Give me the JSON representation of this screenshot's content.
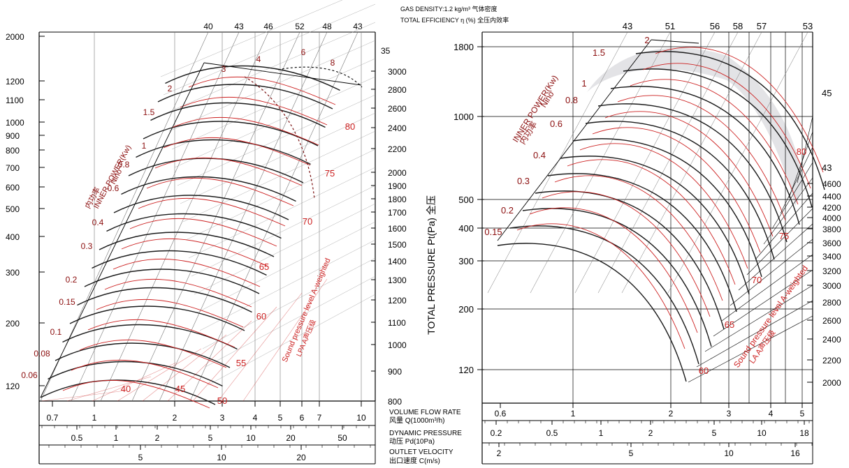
{
  "header": {
    "gas_density": "GAS DENSITY:1.2 kg/m³ 气体密度",
    "total_efficiency": "TOTAL EFFICIENCY η (%) 全压内效率"
  },
  "colors": {
    "curve_dark": "#1a1a1a",
    "curve_red": "#cc1f1f",
    "label_dark_red": "#8b0d0d",
    "grid": "#777777",
    "shade": "#e3e3e6"
  },
  "footer_labels": {
    "flow_en": "VOLUME FLOW RATE",
    "flow_cn": "风量 Q(1000m³/h)",
    "dyn_en": "DYNAMIC PRESSURE",
    "dyn_cn": "动压 Pd(10Pa)",
    "vel_en": "OUTLET VELOCITY",
    "vel_cn": "出口速度 C(m/s)"
  },
  "chart_data": [
    {
      "type": "line",
      "panel": "left",
      "y_axis_ticks": [
        "2000",
        "1200",
        "1100",
        "1000",
        "900",
        "800",
        "700",
        "600",
        "500",
        "400",
        "300",
        "200",
        "120"
      ],
      "rpm_ticks": [
        "3000",
        "2800",
        "2600",
        "2400",
        "2200",
        "2000",
        "1900",
        "1800",
        "1700",
        "1600",
        "1500",
        "1400",
        "1300",
        "1200",
        "1100",
        "1000",
        "900",
        "800"
      ],
      "rpm_top_label": "35",
      "efficiency_ticks": [
        "40",
        "43",
        "46",
        "52",
        "48",
        "43"
      ],
      "power_labels": [
        "0.06",
        "0.08",
        "0.1",
        "0.15",
        "0.2",
        "0.3",
        "0.4",
        "0.6",
        "0.8",
        "1",
        "1.5",
        "2",
        "3",
        "4",
        "6",
        "8"
      ],
      "sound_labels": [
        "40",
        "45",
        "50",
        "55",
        "60",
        "65",
        "70",
        "75",
        "80"
      ],
      "flow_ticks": [
        "0.7",
        "1",
        "2",
        "3",
        "4",
        "5",
        "6",
        "7",
        "10"
      ],
      "dyn_ticks": [
        "0.5",
        "1",
        "2",
        "5",
        "10",
        "20",
        "50"
      ],
      "vel_ticks": [
        "5",
        "10",
        "20"
      ],
      "power_title": "INNER POWER(Kw)",
      "power_title_cn": "内功率",
      "nino_label": "Nino",
      "sound_title": "Sound pressure level A-weighted",
      "sound_title_cn": "LPA A声压级"
    },
    {
      "type": "line",
      "panel": "right",
      "y_axis_ticks": [
        "1800",
        "1000",
        "500",
        "400",
        "300",
        "200",
        "120"
      ],
      "y_axis_title": "TOTAL PRESSURE Pt(Pa) 全压",
      "rpm_ticks": [
        "4600",
        "4400",
        "4200",
        "4000",
        "3800",
        "3600",
        "3400",
        "3200",
        "3000",
        "2800",
        "2600",
        "2400",
        "2200",
        "2000"
      ],
      "efficiency_ticks": [
        "43",
        "51",
        "56",
        "58",
        "57",
        "53"
      ],
      "efficiency_side": [
        "45",
        "43"
      ],
      "power_labels": [
        "0.15",
        "0.2",
        "0.3",
        "0.4",
        "0.6",
        "0.8",
        "1",
        "1.5",
        "2"
      ],
      "sound_labels": [
        "60",
        "65",
        "70",
        "75",
        "80"
      ],
      "flow_ticks": [
        "0.6",
        "1",
        "2",
        "3",
        "4",
        "5"
      ],
      "dyn_ticks": [
        "0.2",
        "0.5",
        "1",
        "2",
        "5",
        "10",
        "18"
      ],
      "vel_ticks": [
        "2",
        "5",
        "10",
        "16"
      ],
      "power_title": "INNER POWER(Kw)",
      "power_title_cn": "内功率",
      "nino_label": "Nino",
      "sound_title": "Sound pressure level A-weighted",
      "sound_title_cn": "LA A声压级"
    }
  ]
}
